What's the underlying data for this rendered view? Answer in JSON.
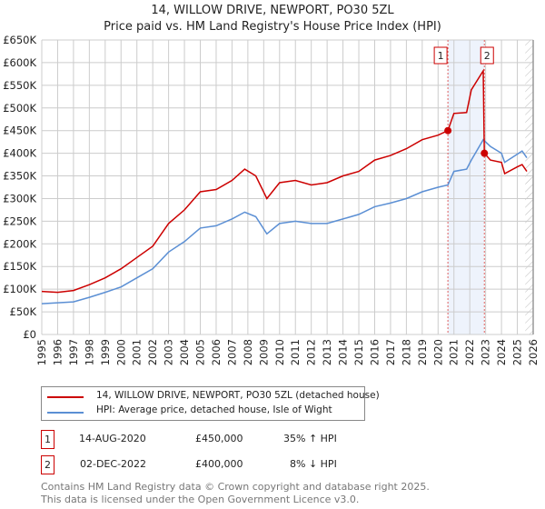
{
  "title": "14, WILLOW DRIVE, NEWPORT, PO30 5ZL",
  "subtitle": "Price paid vs. HM Land Registry's House Price Index (HPI)",
  "chart_data": {
    "type": "line",
    "title": "14, WILLOW DRIVE, NEWPORT, PO30 5ZL - Price paid vs. HM Land Registry's House Price Index (HPI)",
    "xlim": [
      1995,
      2026
    ],
    "ylim": [
      0,
      650000
    ],
    "x_ticks": [
      "1995",
      "1996",
      "1997",
      "1998",
      "1999",
      "2000",
      "2001",
      "2002",
      "2003",
      "2004",
      "2005",
      "2006",
      "2007",
      "2008",
      "2009",
      "2010",
      "2011",
      "2012",
      "2013",
      "2014",
      "2015",
      "2016",
      "2017",
      "2018",
      "2019",
      "2020",
      "2021",
      "2022",
      "2023",
      "2024",
      "2025",
      "2026"
    ],
    "y_ticks": [
      "£0",
      "£50K",
      "£100K",
      "£150K",
      "£200K",
      "£250K",
      "£300K",
      "£350K",
      "£400K",
      "£450K",
      "£500K",
      "£550K",
      "£600K",
      "£650K"
    ],
    "grid": true,
    "series": [
      {
        "name": "14, WILLOW DRIVE, NEWPORT, PO30 5ZL (detached house)",
        "color": "#cc0000",
        "x": [
          1995,
          1996,
          1997,
          1998,
          1999,
          2000,
          2001,
          2002,
          2003,
          2004,
          2005,
          2006,
          2007,
          2007.8,
          2008.5,
          2009.2,
          2010,
          2011,
          2012,
          2013,
          2014,
          2015,
          2016,
          2017,
          2018,
          2019,
          2020,
          2020.62,
          2021,
          2021.8,
          2022.1,
          2022.85,
          2022.92,
          2023.3,
          2024,
          2024.2,
          2025,
          2025.3,
          2025.6
        ],
        "y": [
          95000,
          93000,
          97000,
          110000,
          125000,
          145000,
          170000,
          195000,
          245000,
          275000,
          315000,
          320000,
          340000,
          365000,
          350000,
          300000,
          335000,
          340000,
          330000,
          335000,
          350000,
          360000,
          385000,
          395000,
          410000,
          430000,
          440000,
          450000,
          488000,
          490000,
          540000,
          582000,
          400000,
          385000,
          380000,
          355000,
          370000,
          375000,
          360000
        ]
      },
      {
        "name": "HPI: Average price, detached house, Isle of Wight",
        "color": "#5b8fd4",
        "x": [
          1995,
          1996,
          1997,
          1998,
          1999,
          2000,
          2001,
          2002,
          2003,
          2004,
          2005,
          2006,
          2007,
          2007.8,
          2008.5,
          2009.2,
          2010,
          2011,
          2012,
          2013,
          2014,
          2015,
          2016,
          2017,
          2018,
          2019,
          2020,
          2020.62,
          2021,
          2021.8,
          2022.1,
          2022.85,
          2023.3,
          2024,
          2024.2,
          2025,
          2025.3,
          2025.6
        ],
        "y": [
          68000,
          70000,
          72000,
          82000,
          93000,
          105000,
          125000,
          145000,
          182000,
          205000,
          235000,
          240000,
          255000,
          270000,
          260000,
          222000,
          245000,
          250000,
          245000,
          245000,
          255000,
          265000,
          282000,
          290000,
          300000,
          315000,
          325000,
          330000,
          360000,
          365000,
          385000,
          430000,
          415000,
          400000,
          380000,
          398000,
          405000,
          390000
        ]
      }
    ],
    "annotations": [
      {
        "label": "1",
        "x": 2020.62,
        "y": 450000
      },
      {
        "label": "2",
        "x": 2022.92,
        "y": 400000
      }
    ],
    "shaded_range": [
      2020.62,
      2022.92
    ],
    "forecast_hatch_from": 2025.5,
    "legend": "below"
  },
  "legend": {
    "red": "14, WILLOW DRIVE, NEWPORT, PO30 5ZL (detached house)",
    "blue": "HPI: Average price, detached house, Isle of Wight"
  },
  "transactions": [
    {
      "num": "1",
      "date": "14-AUG-2020",
      "price": "£450,000",
      "hpi": "35% ↑ HPI"
    },
    {
      "num": "2",
      "date": "02-DEC-2022",
      "price": "£400,000",
      "hpi": "8% ↓ HPI"
    }
  ],
  "footer": [
    "Contains HM Land Registry data © Crown copyright and database right 2025.",
    "This data is licensed under the Open Government Licence v3.0."
  ]
}
